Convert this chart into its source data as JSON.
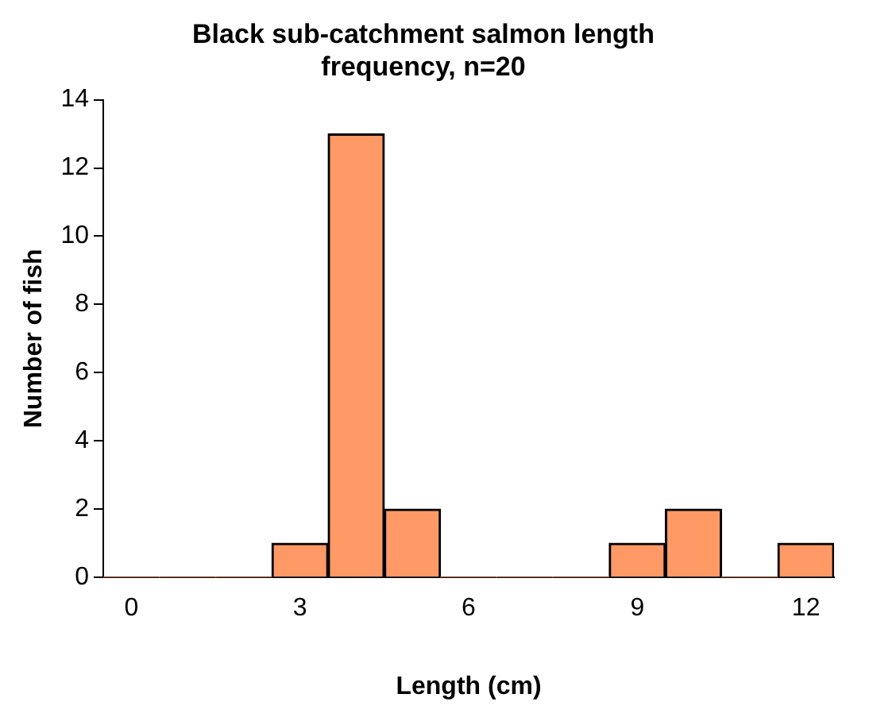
{
  "chart_data": {
    "type": "bar",
    "title": "Black sub-catchment salmon length frequency, n=20",
    "xlabel": "Length (cm)",
    "ylabel": "Number of fish",
    "categories": [
      "0",
      null,
      null,
      "3",
      null,
      null,
      "6",
      null,
      null,
      "9",
      null,
      null,
      "12"
    ],
    "values": [
      0,
      0,
      0,
      1,
      13,
      2,
      0,
      0,
      0,
      1,
      2,
      0,
      1
    ],
    "color": "#ff9966",
    "ylim": [
      0,
      14
    ],
    "yticks": [
      0,
      2,
      4,
      6,
      8,
      10,
      12,
      14
    ],
    "grid": false,
    "legend": false
  }
}
